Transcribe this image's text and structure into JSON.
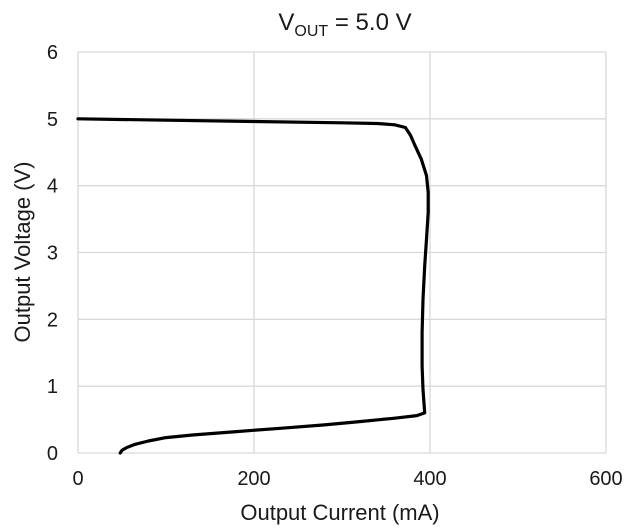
{
  "chart_data": {
    "type": "line",
    "title": {
      "main": "V",
      "subscript": "OUT",
      "rest": " = 5.0 V"
    },
    "xlabel": "Output Current (mA)",
    "ylabel": "Output Voltage (V)",
    "xlim": [
      0,
      600
    ],
    "ylim": [
      0,
      6
    ],
    "xticks": [
      0,
      200,
      400,
      600
    ],
    "yticks": [
      0,
      1,
      2,
      3,
      4,
      5,
      6
    ],
    "grid": true,
    "line_color": "#000000",
    "grid_color": "#d9d9d9",
    "series": [
      {
        "x": [
          0,
          100,
          200,
          300,
          340,
          360,
          372,
          378,
          383,
          390,
          396,
          398,
          398,
          396,
          394,
          392,
          391,
          391,
          392,
          394,
          385,
          360,
          320,
          280,
          230,
          180,
          130,
          100,
          80,
          65,
          55,
          50,
          48
        ],
        "y": [
          5.0,
          4.98,
          4.96,
          4.94,
          4.93,
          4.91,
          4.87,
          4.75,
          4.6,
          4.4,
          4.15,
          3.9,
          3.6,
          3.2,
          2.8,
          2.3,
          1.8,
          1.3,
          0.95,
          0.6,
          0.56,
          0.52,
          0.47,
          0.42,
          0.37,
          0.32,
          0.27,
          0.23,
          0.18,
          0.13,
          0.08,
          0.04,
          0.0
        ]
      }
    ]
  }
}
